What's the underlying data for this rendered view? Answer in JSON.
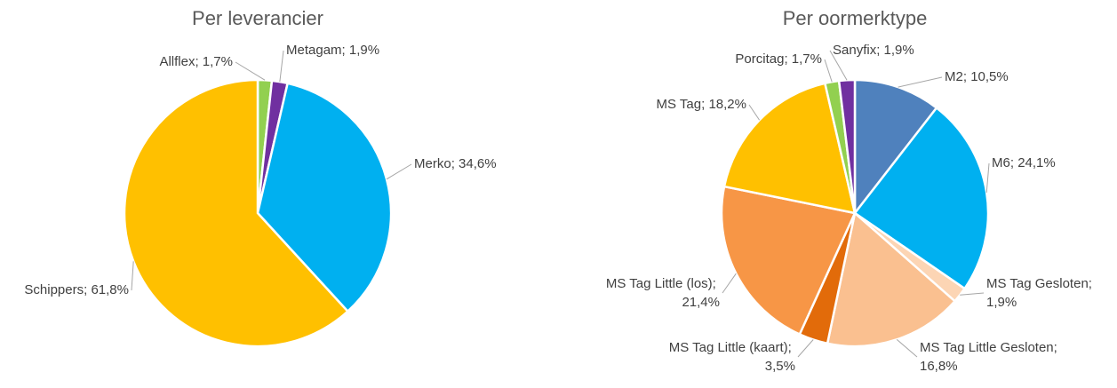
{
  "chart_data": [
    {
      "type": "pie",
      "title": "Per leverancier",
      "label_separator": "; ",
      "categories": [
        "Allflex",
        "Metagam",
        "Merko",
        "Schippers"
      ],
      "values": [
        1.7,
        1.9,
        34.6,
        61.8
      ],
      "value_labels": [
        "1,7%",
        "1,9%",
        "34,6%",
        "61,8%"
      ],
      "colors": [
        "#92d050",
        "#7030a0",
        "#00b0f0",
        "#ffc000"
      ]
    },
    {
      "type": "pie",
      "title": "Per oormerktype",
      "label_separator": "; ",
      "categories": [
        "M2",
        "M6",
        "MS Tag Gesloten",
        "MS Tag Little Gesloten",
        "MS Tag Little (kaart)",
        "MS Tag Little (los)",
        "MS Tag",
        "Porcitag",
        "Sanyfix"
      ],
      "values": [
        10.5,
        24.1,
        1.9,
        16.8,
        3.5,
        21.4,
        18.2,
        1.7,
        1.9
      ],
      "value_labels": [
        "10,5%",
        "24,1%",
        "1,9%",
        "16,8%",
        "3,5%",
        "21,4%",
        "18,2%",
        "1,7%",
        "1,9%"
      ],
      "colors": [
        "#4f81bd",
        "#00b0f0",
        "#fcd5b4",
        "#fac090",
        "#e26b0a",
        "#f79646",
        "#ffc000",
        "#92d050",
        "#7030a0"
      ]
    }
  ]
}
